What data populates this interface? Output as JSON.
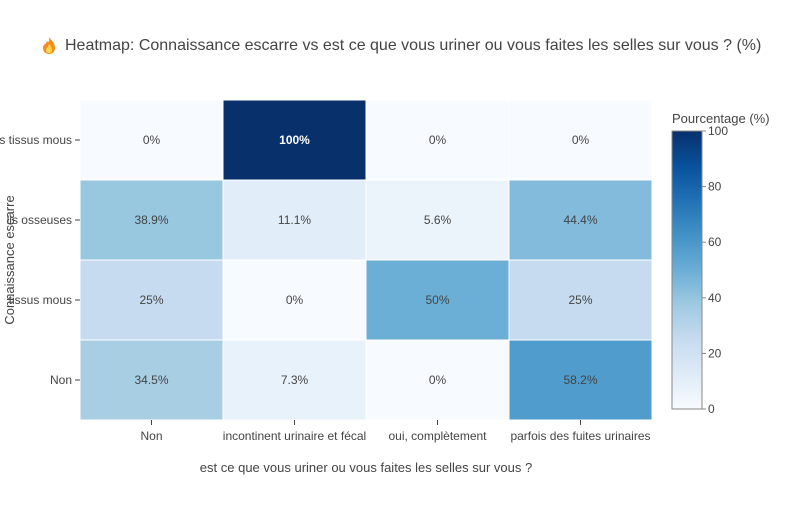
{
  "chart_data": {
    "type": "heatmap",
    "title_icon": "fire-icon",
    "title": "Heatmap: Connaissance escarre vs est ce que vous uriner ou vous faites les selles sur vous ? (%)",
    "xlabel": "est ce que vous uriner ou vous faites les selles sur vous ?",
    "ylabel": "Connaissance escarre",
    "x_categories": [
      "Non",
      "incontinent urinaire et fécal",
      "oui, complètement",
      "parfois des fuites urinaires"
    ],
    "y_categories": [
      "es tissus mous",
      "lis osseuses",
      "tissus mous",
      "Non"
    ],
    "values": [
      [
        0,
        100,
        0,
        0
      ],
      [
        38.9,
        11.1,
        5.6,
        44.4
      ],
      [
        25,
        0,
        50,
        25
      ],
      [
        34.5,
        7.3,
        0,
        58.2
      ]
    ],
    "cell_labels": [
      [
        "0%",
        "100%",
        "0%",
        "0%"
      ],
      [
        "38.9%",
        "11.1%",
        "5.6%",
        "44.4%"
      ],
      [
        "25%",
        "0%",
        "50%",
        "25%"
      ],
      [
        "34.5%",
        "7.3%",
        "0%",
        "58.2%"
      ]
    ],
    "colorbar": {
      "title": "Pourcentage (%)",
      "range": [
        0,
        100
      ],
      "ticks": [
        0,
        20,
        40,
        60,
        80,
        100
      ],
      "colorscale": [
        [
          0,
          "#f7fbff"
        ],
        [
          0.125,
          "#deebf7"
        ],
        [
          0.25,
          "#c6dbef"
        ],
        [
          0.375,
          "#9ecae1"
        ],
        [
          0.5,
          "#6baed6"
        ],
        [
          0.625,
          "#4292c6"
        ],
        [
          0.75,
          "#2171b5"
        ],
        [
          0.875,
          "#08519c"
        ],
        [
          1,
          "#08306b"
        ]
      ]
    }
  }
}
